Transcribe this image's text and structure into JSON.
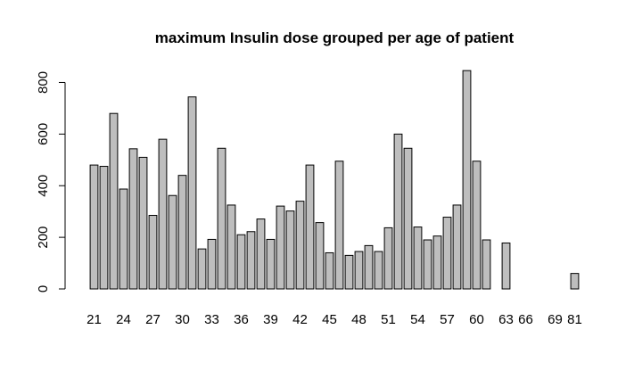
{
  "chart_data": {
    "type": "bar",
    "title": "maximum Insulin dose grouped per age of patient",
    "xlabel": "",
    "ylabel": "",
    "ylim": [
      0,
      850
    ],
    "yticks": [
      0,
      200,
      400,
      600,
      800
    ],
    "grid": false,
    "categories": [
      "21",
      "22",
      "23",
      "24",
      "25",
      "26",
      "27",
      "28",
      "29",
      "30",
      "31",
      "32",
      "33",
      "34",
      "35",
      "36",
      "37",
      "38",
      "39",
      "40",
      "41",
      "42",
      "43",
      "44",
      "45",
      "46",
      "47",
      "48",
      "49",
      "50",
      "51",
      "52",
      "53",
      "54",
      "55",
      "56",
      "57",
      "58",
      "59",
      "60",
      "61",
      "62",
      "63",
      "64",
      "66",
      "67",
      "68",
      "69",
      "72",
      "81"
    ],
    "visible_x_labels": [
      "21",
      "24",
      "27",
      "30",
      "33",
      "36",
      "39",
      "42",
      "45",
      "48",
      "51",
      "54",
      "57",
      "60",
      "63",
      "66",
      "69",
      "81"
    ],
    "values": [
      480,
      475,
      680,
      387,
      543,
      510,
      285,
      580,
      362,
      440,
      744,
      155,
      192,
      545,
      325,
      210,
      222,
      271,
      192,
      321,
      302,
      340,
      480,
      257,
      140,
      495,
      130,
      145,
      168,
      145,
      237,
      600,
      545,
      240,
      190,
      205,
      278,
      325,
      846,
      495,
      190,
      0,
      178,
      0,
      0,
      0,
      0,
      0,
      0,
      60
    ],
    "bar_color": "#bebebe",
    "border_color": "#000000"
  }
}
